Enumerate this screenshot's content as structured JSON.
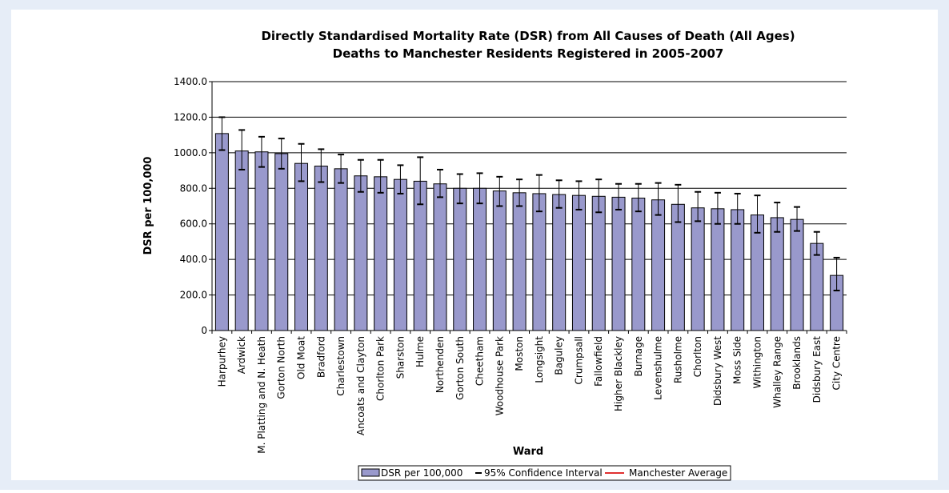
{
  "chart_data": {
    "type": "bar",
    "title": [
      "Directly Standardised Mortality Rate (DSR) from All Causes of Death (All Ages)",
      "Deaths to Manchester Residents Registered in 2005-2007"
    ],
    "xlabel": "Ward",
    "ylabel": "DSR per 100,000",
    "categories": [
      "Harpurhey",
      "Ardwick",
      "M. Platting and N. Heath",
      "Gorton North",
      "Old Moat",
      "Bradford",
      "Charlestown",
      "Ancoats and Clayton",
      "Chorlton Park",
      "Sharston",
      "Hulme",
      "Northenden",
      "Gorton South",
      "Cheetham",
      "Woodhouse Park",
      "Moston",
      "Longsight",
      "Baguley",
      "Crumpsall",
      "Fallowfield",
      "Higher Blackley",
      "Burnage",
      "Levenshulme",
      "Rusholme",
      "Chorlton",
      "Didsbury West",
      "Moss Side",
      "Withington",
      "Whalley Range",
      "Brooklands",
      "Didsbury East",
      "City Centre"
    ],
    "series": [
      {
        "name": "DSR per 100,000",
        "color": "#9999cc",
        "values": [
          1108,
          1010,
          1005,
          995,
          940,
          925,
          910,
          870,
          865,
          850,
          840,
          825,
          800,
          800,
          785,
          775,
          770,
          765,
          760,
          755,
          750,
          745,
          735,
          710,
          690,
          685,
          680,
          650,
          635,
          625,
          490,
          310
        ]
      }
    ],
    "confidence_interval": {
      "name": "95% Confidence Interval",
      "color": "#000000",
      "lower": [
        1015,
        905,
        920,
        910,
        840,
        835,
        830,
        780,
        775,
        770,
        710,
        750,
        715,
        715,
        700,
        700,
        670,
        690,
        680,
        665,
        680,
        670,
        650,
        610,
        615,
        600,
        600,
        550,
        555,
        560,
        425,
        225
      ],
      "upper": [
        1200,
        1128,
        1090,
        1080,
        1050,
        1020,
        990,
        960,
        960,
        930,
        975,
        905,
        880,
        885,
        865,
        850,
        875,
        845,
        840,
        850,
        825,
        825,
        830,
        820,
        780,
        775,
        770,
        760,
        720,
        695,
        555,
        410
      ]
    },
    "average": {
      "name": "Manchester Average",
      "color": "#e03030"
    },
    "ylim": [
      0,
      1400
    ],
    "yticks": [
      0,
      {
        "value": 200,
        "label": "200.0"
      },
      {
        "value": 400,
        "label": "400.0"
      },
      {
        "value": 600,
        "label": "600.0"
      },
      {
        "value": 800,
        "label": "800.0"
      },
      {
        "value": 1000,
        "label": "1000.0"
      },
      {
        "value": 1200,
        "label": "1200.0"
      },
      {
        "value": 1400,
        "label": "1400.0"
      }
    ],
    "grid": true,
    "legend": "bottom"
  }
}
